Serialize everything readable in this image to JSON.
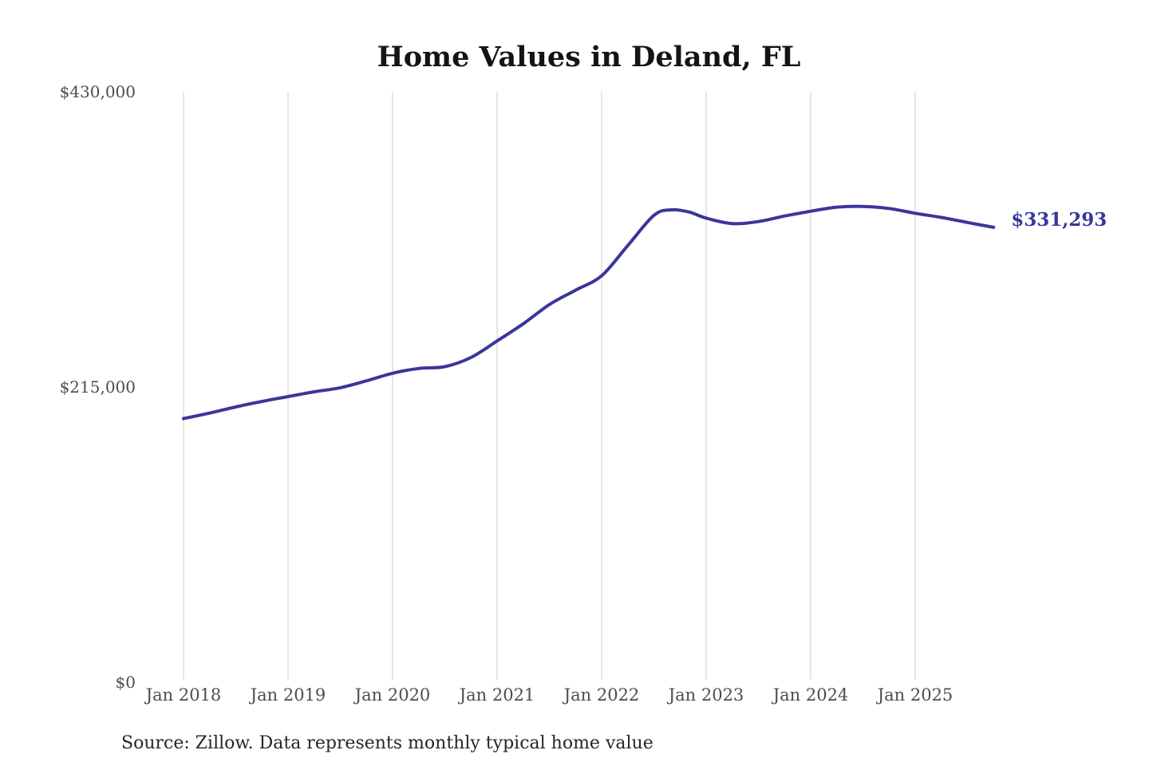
{
  "title": "Home Values in Deland, FL",
  "source_note": "Source: Zillow. Data represents monthly typical home value",
  "latest_value_label": "$331,293",
  "colors": {
    "line": "#3a369b",
    "latest_label": "#3a369b",
    "grid": "#cccccc",
    "axis_text": "#4d4d4d",
    "title_text": "#141414",
    "source_text": "#262626",
    "background": "#ffffff"
  },
  "y_axis": {
    "ticks": [
      {
        "label": "$430,000",
        "value": 430000
      },
      {
        "label": "$215,000",
        "value": 215000
      },
      {
        "label": "$0",
        "value": 0
      }
    ]
  },
  "x_axis": {
    "ticks": [
      {
        "label": "Jan 2018",
        "date": "2018-01"
      },
      {
        "label": "Jan 2019",
        "date": "2019-01"
      },
      {
        "label": "Jan 2020",
        "date": "2020-01"
      },
      {
        "label": "Jan 2021",
        "date": "2021-01"
      },
      {
        "label": "Jan 2022",
        "date": "2022-01"
      },
      {
        "label": "Jan 2023",
        "date": "2023-01"
      },
      {
        "label": "Jan 2024",
        "date": "2024-01"
      },
      {
        "label": "Jan 2025",
        "date": "2025-01"
      }
    ]
  },
  "chart_data": {
    "type": "line",
    "title": "Home Values in Deland, FL",
    "series_name": "Monthly typical home value (USD)",
    "grid": "vertical-only",
    "legend": "none",
    "ylim": [
      0,
      430000
    ],
    "x": [
      "2018-01",
      "2018-04",
      "2018-07",
      "2018-10",
      "2019-01",
      "2019-04",
      "2019-07",
      "2019-10",
      "2020-01",
      "2020-04",
      "2020-07",
      "2020-10",
      "2021-01",
      "2021-04",
      "2021-07",
      "2021-10",
      "2022-01",
      "2022-04",
      "2022-07",
      "2022-09",
      "2022-11",
      "2023-01",
      "2023-04",
      "2023-07",
      "2023-10",
      "2024-01",
      "2024-04",
      "2024-07",
      "2024-10",
      "2025-01",
      "2025-04",
      "2025-07",
      "2025-10"
    ],
    "y": [
      192000,
      196000,
      200500,
      204500,
      208000,
      211500,
      214500,
      219500,
      225000,
      228500,
      229800,
      236500,
      248500,
      261000,
      275000,
      285500,
      296000,
      318000,
      340000,
      344000,
      342500,
      338000,
      334000,
      335500,
      339500,
      343000,
      346000,
      346500,
      345000,
      341500,
      338500,
      334800,
      331293
    ],
    "latest_point": {
      "date": "2025-10",
      "value": 331293,
      "label": "$331,293"
    }
  }
}
